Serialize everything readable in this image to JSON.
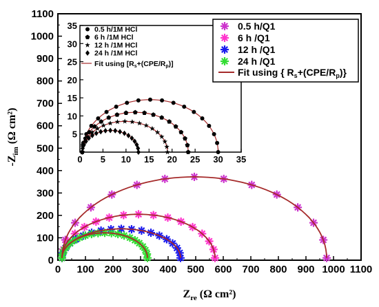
{
  "chart_data": [
    {
      "type": "scatter",
      "xlabel": "Z",
      "xlabel_sub": "re",
      "xlabel_unit": " (Ω cm²)",
      "ylabel": "-Z",
      "ylabel_sub": "im",
      "ylabel_unit": " (Ω cm²)",
      "xlim": [
        0,
        1100
      ],
      "ylim": [
        0,
        1100
      ],
      "xticks": [
        "0",
        "100",
        "200",
        "300",
        "400",
        "500",
        "600",
        "700",
        "800",
        "900",
        "1000",
        "1100"
      ],
      "yticks": [
        "0",
        "100",
        "200",
        "300",
        "400",
        "500",
        "600",
        "700",
        "800",
        "900",
        "1000",
        "1100"
      ],
      "grid": false,
      "legend_position": "top-right",
      "series": [
        {
          "name": "0.5 h/Q1",
          "color": "#cc33cc",
          "marker": "asterisk",
          "rp": 960,
          "peak": 362
        },
        {
          "name": "6 h   /Q1",
          "color": "#ff33cc",
          "marker": "asterisk",
          "rp": 555,
          "peak": 195
        },
        {
          "name": "12 h /Q1",
          "color": "#1a1aee",
          "marker": "asterisk",
          "rp": 430,
          "peak": 130
        },
        {
          "name": "24 h /Q1",
          "color": "#33dd33",
          "marker": "asterisk",
          "rp": 310,
          "peak": 112
        }
      ],
      "fit": {
        "name": "Fit using { R",
        "sub": "s",
        "tail": "+(CPE/R",
        "sub2": "p",
        "end": ")}",
        "color": "#a52a2a"
      }
    },
    {
      "type": "scatter",
      "inset": true,
      "xlim": [
        0,
        35
      ],
      "ylim": [
        0,
        35
      ],
      "xticks": [
        "0",
        "5",
        "10",
        "15",
        "20",
        "25",
        "30",
        "35"
      ],
      "yticks": [
        "0",
        "5",
        "10",
        "15",
        "20",
        "25",
        "30",
        "35"
      ],
      "yticks_mapped": [
        "500",
        "550",
        "600",
        "650",
        "700",
        "750",
        "800",
        "850"
      ],
      "legend_position": "top-left",
      "series": [
        {
          "name": "0.5 h/1M HCl",
          "marker": "circle",
          "rp": 29.5,
          "peak": 14.5
        },
        {
          "name": "6 h  /1M HCl",
          "marker": "pentagon",
          "rp": 23,
          "peak": 11
        },
        {
          "name": "12 h /1M HCl",
          "marker": "star",
          "rp": 18.5,
          "peak": 8.5
        },
        {
          "name": "24 h /1M HCl",
          "marker": "diamond",
          "rp": 12.2,
          "peak": 6
        }
      ],
      "fit": {
        "name": "Fit using [R",
        "sub": "s",
        "tail": "+(CPE/R",
        "sub2": "p",
        "end": ")]",
        "color": "#a52a2a"
      }
    }
  ]
}
